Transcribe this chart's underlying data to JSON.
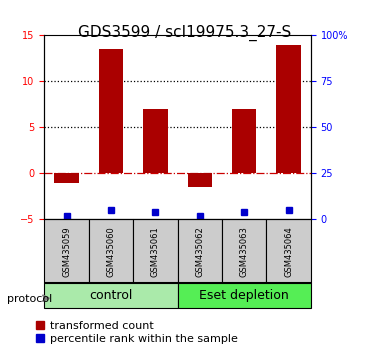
{
  "title": "GDS3599 / scI19975.3_27-S",
  "samples": [
    "GSM435059",
    "GSM435060",
    "GSM435061",
    "GSM435062",
    "GSM435063",
    "GSM435064"
  ],
  "bar_bottoms": [
    -1.0,
    0.0,
    0.0,
    -1.5,
    0.0,
    0.0
  ],
  "bar_tops": [
    0.0,
    13.5,
    7.0,
    0.0,
    7.0,
    14.0
  ],
  "blue_dots": [
    2.0,
    5.2,
    3.8,
    2.0,
    3.8,
    5.0
  ],
  "bar_color": "#aa0000",
  "dot_color": "#0000cc",
  "ylim_left": [
    -5,
    15
  ],
  "yticks_left": [
    -5,
    0,
    5,
    10,
    15
  ],
  "ylim_right": [
    0,
    100
  ],
  "yticks_right": [
    0,
    25,
    50,
    75,
    100
  ],
  "hlines": [
    5.0,
    10.0
  ],
  "hline_color": "black",
  "hline_style": "dotted",
  "zero_line_color": "#cc0000",
  "zero_line_style": "dashdot",
  "group_labels": [
    "control",
    "Eset depletion"
  ],
  "group_ranges": [
    [
      0,
      3
    ],
    [
      3,
      6
    ]
  ],
  "group_colors": [
    "#90ee90",
    "#55dd55"
  ],
  "protocol_label": "protocol",
  "legend_red": "transformed count",
  "legend_blue": "percentile rank within the sample",
  "bar_width": 0.55,
  "title_fontsize": 11,
  "tick_fontsize": 7,
  "label_fontsize": 8,
  "group_label_fontsize": 9,
  "legend_fontsize": 8
}
